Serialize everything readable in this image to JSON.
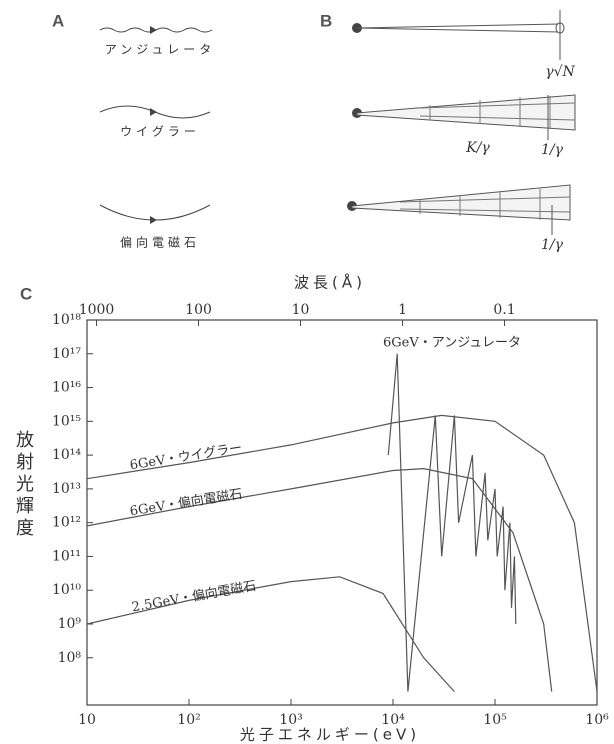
{
  "panels": {
    "a": {
      "label": "A",
      "items": [
        "アンジュレータ",
        "ウイグラー",
        "偏向電磁石"
      ]
    },
    "b": {
      "label": "B",
      "annotations": [
        "γ√N",
        "K/γ",
        "1/γ",
        "1/γ"
      ]
    }
  },
  "chart_data": {
    "type": "line",
    "panel_label": "C",
    "x_label": "光子エネルギー(eV)",
    "x2_label": "波長(Å)",
    "y_label": "放射光輝度",
    "xscale": "log",
    "yscale": "log",
    "xlim": [
      10,
      1000000
    ],
    "xticks": [
      10,
      {
        "value": 100,
        "label": "10²"
      },
      {
        "value": 1000,
        "label": "10³"
      },
      {
        "value": 10000,
        "label": "10⁴"
      },
      {
        "value": 100000,
        "label": "10⁵"
      },
      {
        "value": 1000000,
        "label": "10⁶"
      }
    ],
    "x2lim": [
      1240,
      0.0124
    ],
    "x2ticks": [
      1000,
      100,
      10,
      1,
      0.1
    ],
    "ylim": [
      4000000,
      1e+18
    ],
    "yticks": [
      {
        "value": 100000000,
        "label": "10⁸"
      },
      {
        "value": 1000000000,
        "label": "10⁹"
      },
      {
        "value": 10000000000,
        "label": "10¹⁰"
      },
      {
        "value": 100000000000,
        "label": "10¹¹"
      },
      {
        "value": 1000000000000,
        "label": "10¹²"
      },
      {
        "value": 10000000000000,
        "label": "10¹³"
      },
      {
        "value": 100000000000000,
        "label": "10¹⁴"
      },
      {
        "value": 1000000000000000,
        "label": "10¹⁵"
      },
      {
        "value": 1e+16,
        "label": "10¹⁶"
      },
      {
        "value": 1e+17,
        "label": "10¹⁷"
      },
      {
        "value": 1e+18,
        "label": "10¹⁸"
      }
    ],
    "color": "#555555",
    "series": [
      {
        "name": "6GeV・アンジュレータ",
        "x": [
          9000,
          11000,
          14000,
          26000,
          30000,
          40000,
          44000,
          60000,
          65000,
          80000,
          85000,
          100000,
          105000,
          120000,
          125000,
          140000,
          145000,
          155000,
          160000
        ],
        "values": [
          100000000000000,
          100000000000000000,
          10000000,
          1500000000000000,
          100000000000,
          1500000000000000,
          1000000000000,
          100000000000000,
          100000000000,
          30000000000000,
          300000000000,
          10000000000000,
          100000000000,
          3000000000000,
          10000000000,
          1000000000000,
          3000000000,
          100000000000,
          1000000000
        ]
      },
      {
        "name": "6GeV・ウイグラー",
        "x": [
          10,
          100,
          1000,
          10000,
          30000,
          100000,
          300000,
          600000,
          1000000
        ],
        "values": [
          20000000000000,
          60000000000000,
          200000000000000,
          900000000000000,
          1500000000000000,
          1000000000000000,
          100000000000000,
          1000000000000,
          10000000
        ]
      },
      {
        "name": "6GeV・偏向電磁石",
        "x": [
          10,
          100,
          1000,
          10000,
          20000,
          60000,
          150000,
          300000,
          360000
        ],
        "values": [
          800000000000,
          3000000000000,
          10000000000000,
          35000000000000,
          40000000000000,
          20000000000000,
          500000000000,
          1000000000,
          10000000
        ]
      },
      {
        "name": "2.5GeV・偏向電磁石",
        "x": [
          10,
          100,
          1000,
          3000,
          8000,
          20000,
          40000
        ],
        "values": [
          1000000000,
          5000000000,
          18000000000,
          25000000000,
          8000000000,
          100000000,
          10000000
        ]
      }
    ]
  }
}
